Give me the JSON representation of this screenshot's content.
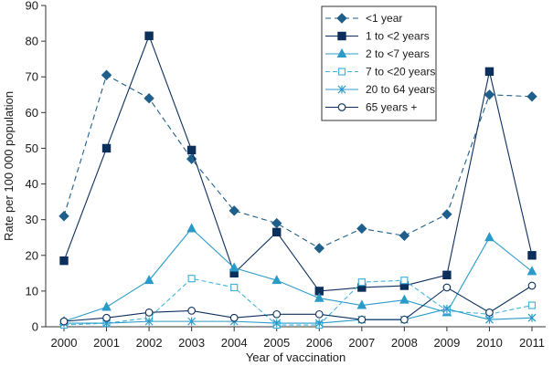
{
  "chart_data": {
    "type": "line",
    "title": "",
    "xlabel": "Year of vaccination",
    "ylabel": "Rate per 100 000 population",
    "ylim": [
      0,
      90
    ],
    "yticks": [
      0,
      10,
      20,
      30,
      40,
      50,
      60,
      70,
      80,
      90
    ],
    "categories": [
      "2000",
      "2001",
      "2002",
      "2003",
      "2004",
      "2005",
      "2006",
      "2007",
      "2008",
      "2009",
      "2010",
      "2011"
    ],
    "legend_position": "top-right",
    "grid": false,
    "series": [
      {
        "name": "<1 year",
        "color": "#1f5f8b",
        "dash": "6,4",
        "marker": "diamond-filled",
        "values": [
          31,
          70.5,
          64,
          47,
          32.5,
          29,
          22,
          27.5,
          25.5,
          31.5,
          65,
          64.5
        ]
      },
      {
        "name": "1 to <2 years",
        "color": "#0d2f5c",
        "dash": "",
        "marker": "square-filled",
        "values": [
          18.5,
          50,
          81.5,
          49.5,
          15,
          26.5,
          10,
          11,
          11.5,
          14.5,
          71.5,
          20
        ]
      },
      {
        "name": "2 to <7 years",
        "color": "#2a9bc8",
        "dash": "",
        "marker": "triangle-filled",
        "values": [
          1.5,
          5.5,
          13,
          27.5,
          16.5,
          13,
          8,
          6,
          7.5,
          4,
          25,
          15.5
        ]
      },
      {
        "name": "7 to <20 years",
        "color": "#46b3dc",
        "dash": "5,3",
        "marker": "square-open",
        "values": [
          0.5,
          1,
          2.5,
          13.5,
          11,
          0.5,
          0.5,
          12.5,
          13,
          4.5,
          3.5,
          6
        ]
      },
      {
        "name": "20 to 64 years",
        "color": "#2a9bc8",
        "dash": "",
        "marker": "star",
        "values": [
          1,
          1,
          1.5,
          1.5,
          1.5,
          1,
          1,
          2,
          2,
          5,
          2,
          2.5
        ]
      },
      {
        "name": "65 years +",
        "color": "#0d2f5c",
        "dash": "",
        "marker": "circle-open",
        "values": [
          1.5,
          2.5,
          4,
          4.5,
          2.5,
          3.5,
          3.5,
          2,
          2,
          11,
          4,
          11.5
        ]
      }
    ]
  }
}
